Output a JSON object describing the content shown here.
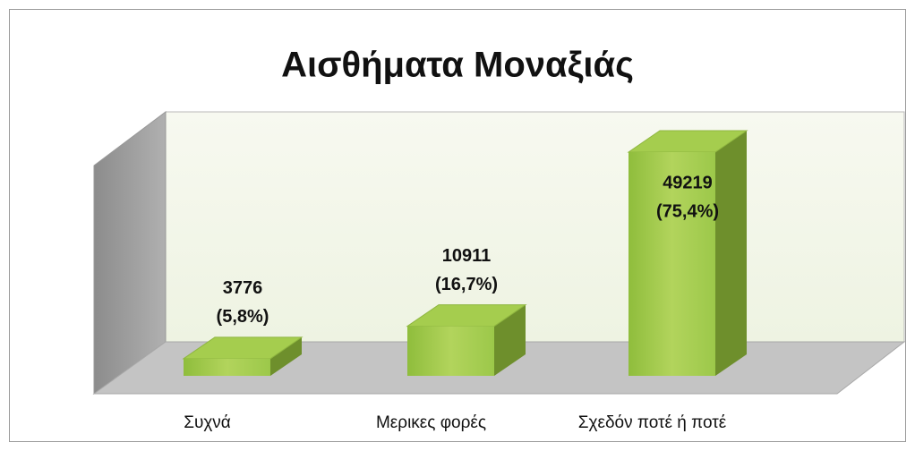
{
  "chart_data": {
    "type": "bar3d",
    "title": "Αισθήματα Μοναξιάς",
    "categories": [
      "Συχνά",
      "Μερικες φορές",
      "Σχεδόν ποτέ ή ποτέ"
    ],
    "values": [
      3776,
      10911,
      49219
    ],
    "percents": [
      5.8,
      16.7,
      75.4
    ],
    "percent_labels": [
      "(5,8%)",
      "(16,7%)",
      "(75,4%)"
    ],
    "color": "#9cc84a"
  }
}
